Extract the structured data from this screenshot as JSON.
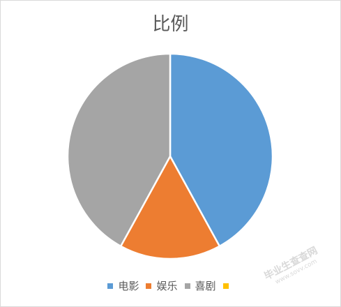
{
  "chart_data": {
    "type": "pie",
    "title": "比例",
    "categories": [
      "电影",
      "娱乐",
      "喜剧",
      ""
    ],
    "values": [
      42,
      16,
      42,
      0
    ],
    "colors": [
      "#5b9bd5",
      "#ed7d31",
      "#a5a5a5",
      "#ffc000"
    ],
    "legend_position": "bottom"
  },
  "watermark": {
    "text": "毕业生查查网",
    "sub": "www.sovv.com"
  }
}
